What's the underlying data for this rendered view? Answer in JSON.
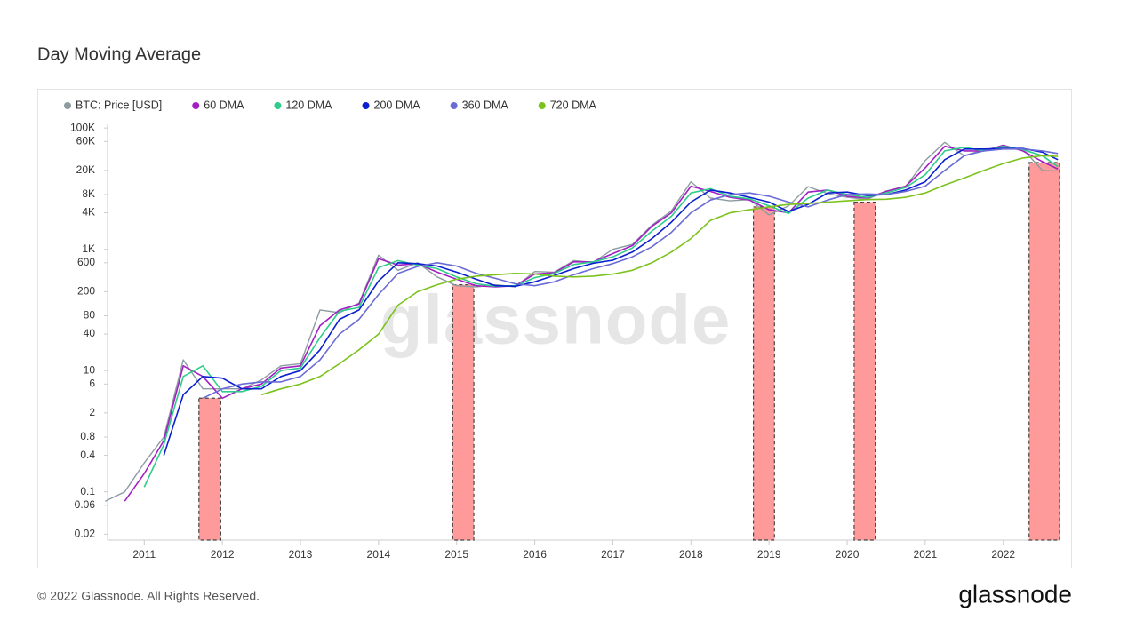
{
  "chart_data": {
    "type": "line",
    "title": "Day Moving Average",
    "watermark": "glassnode",
    "footer": "© 2022 Glassnode. All Rights Reserved.",
    "brand": "glassnode",
    "log_y": true,
    "grid": false,
    "legend": "top-left",
    "xlim": [
      2010.53,
      2022.72
    ],
    "xticks": [
      2011,
      2012,
      2013,
      2014,
      2015,
      2016,
      2017,
      2018,
      2019,
      2020,
      2021,
      2022
    ],
    "ylim": [
      0.016,
      115000
    ],
    "yticks": [
      {
        "value": 100000,
        "label": "100K"
      },
      {
        "value": 60000,
        "label": "60K"
      },
      {
        "value": 20000,
        "label": "20K"
      },
      {
        "value": 8000,
        "label": "8K"
      },
      {
        "value": 4000,
        "label": "4K"
      },
      {
        "value": 1000,
        "label": "1K"
      },
      600,
      200,
      80,
      40,
      10,
      6,
      2,
      0.8,
      0.4,
      0.1,
      0.06,
      0.02
    ],
    "regions": [
      {
        "x0": 2011.7,
        "x1": 2011.98,
        "top": 3.5
      },
      {
        "x0": 2014.95,
        "x1": 2015.22,
        "top": 260
      },
      {
        "x0": 2018.8,
        "x1": 2019.07,
        "top": 5000
      },
      {
        "x0": 2020.09,
        "x1": 2020.36,
        "top": 6000
      },
      {
        "x0": 2022.33,
        "x1": 2022.72,
        "top": 27000
      }
    ],
    "region_color": "#ff9a9a",
    "x": [
      2010.5,
      2010.75,
      2011.0,
      2011.25,
      2011.5,
      2011.75,
      2012.0,
      2012.25,
      2012.5,
      2012.75,
      2013.0,
      2013.25,
      2013.5,
      2013.75,
      2014.0,
      2014.25,
      2014.5,
      2014.75,
      2015.0,
      2015.25,
      2015.5,
      2015.75,
      2016.0,
      2016.25,
      2016.5,
      2016.75,
      2017.0,
      2017.25,
      2017.5,
      2017.75,
      2018.0,
      2018.25,
      2018.5,
      2018.75,
      2019.0,
      2019.25,
      2019.5,
      2019.75,
      2020.0,
      2020.25,
      2020.5,
      2020.75,
      2021.0,
      2021.25,
      2021.5,
      2021.75,
      2022.0,
      2022.25,
      2022.5,
      2022.7
    ],
    "series": [
      {
        "name": "BTC: Price [USD]",
        "color": "#8c9ba1",
        "values": [
          0.07,
          0.1,
          0.3,
          0.8,
          15,
          5,
          5,
          5,
          7,
          12,
          13,
          100,
          90,
          130,
          800,
          450,
          600,
          350,
          250,
          240,
          260,
          240,
          430,
          420,
          650,
          610,
          1000,
          1200,
          2500,
          4300,
          13000,
          7000,
          6300,
          6600,
          3700,
          5200,
          10800,
          8300,
          7200,
          6600,
          9200,
          10800,
          29000,
          58000,
          35000,
          44000,
          47000,
          45000,
          20000,
          19500
        ]
      },
      {
        "name": "60 DMA",
        "color": "#a21fc4",
        "values": [
          null,
          0.07,
          0.2,
          0.7,
          12,
          8,
          3.5,
          5,
          6,
          11,
          12,
          55,
          100,
          125,
          700,
          550,
          580,
          420,
          320,
          250,
          240,
          250,
          390,
          410,
          620,
          620,
          850,
          1150,
          2400,
          4000,
          11000,
          9000,
          7200,
          6500,
          4500,
          4000,
          8800,
          9500,
          7500,
          7000,
          9000,
          11000,
          22000,
          50000,
          42000,
          42000,
          52000,
          42000,
          28000,
          21000
        ]
      },
      {
        "name": "120 DMA",
        "color": "#2ecc8a",
        "values": [
          null,
          null,
          0.12,
          0.6,
          8,
          12,
          4.5,
          4.5,
          5.5,
          10,
          11,
          35,
          95,
          110,
          500,
          650,
          550,
          480,
          350,
          270,
          245,
          250,
          340,
          400,
          560,
          620,
          750,
          1050,
          2000,
          3500,
          8500,
          10000,
          7500,
          6800,
          5200,
          3900,
          7000,
          9500,
          8000,
          7200,
          8500,
          10500,
          17000,
          42000,
          48000,
          42000,
          50000,
          44000,
          35000,
          23000
        ]
      },
      {
        "name": "200 DMA",
        "color": "#0a1fd0",
        "values": [
          null,
          null,
          null,
          0.4,
          4,
          8,
          7.5,
          5,
          5,
          8,
          10,
          22,
          70,
          100,
          300,
          600,
          580,
          530,
          420,
          320,
          250,
          245,
          290,
          370,
          480,
          590,
          660,
          900,
          1500,
          2800,
          6000,
          9500,
          8500,
          7200,
          6000,
          4200,
          5500,
          8500,
          8800,
          7700,
          8000,
          9500,
          13000,
          30000,
          45000,
          45000,
          46000,
          46000,
          40000,
          30000
        ]
      },
      {
        "name": "360 DMA",
        "color": "#6b6bd6",
        "values": [
          null,
          null,
          null,
          null,
          null,
          3.5,
          5,
          6,
          6.5,
          6.5,
          8,
          15,
          40,
          70,
          180,
          400,
          520,
          600,
          530,
          400,
          330,
          270,
          250,
          290,
          380,
          480,
          580,
          750,
          1100,
          1900,
          4000,
          6500,
          8000,
          8500,
          7500,
          6000,
          5000,
          6500,
          8000,
          8200,
          8000,
          9000,
          11000,
          20000,
          35000,
          42000,
          45000,
          45000,
          42000,
          38000
        ]
      },
      {
        "name": "720 DMA",
        "color": "#7cc21c",
        "values": [
          null,
          null,
          null,
          null,
          null,
          null,
          null,
          null,
          4,
          5,
          6,
          8,
          13,
          22,
          40,
          120,
          200,
          260,
          320,
          360,
          380,
          400,
          390,
          360,
          350,
          360,
          390,
          450,
          600,
          900,
          1500,
          3000,
          4000,
          4500,
          5000,
          5500,
          5700,
          6000,
          6300,
          6600,
          6700,
          7200,
          8500,
          11500,
          15000,
          20000,
          26000,
          32000,
          35000,
          34000
        ]
      }
    ]
  }
}
